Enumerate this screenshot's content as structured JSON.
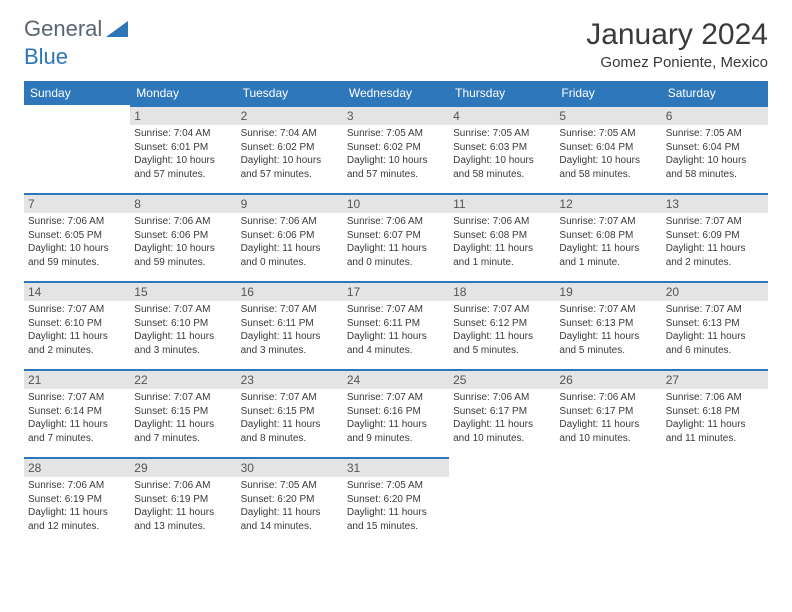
{
  "logo": {
    "part1": "General",
    "part2": "Blue"
  },
  "title": "January 2024",
  "subtitle": "Gomez Poniente, Mexico",
  "calendar": {
    "day_headers": [
      "Sunday",
      "Monday",
      "Tuesday",
      "Wednesday",
      "Thursday",
      "Friday",
      "Saturday"
    ],
    "header_bg": "#2e77bb",
    "header_fg": "#ffffff",
    "daynum_bg": "#e4e4e4",
    "daynum_border": "#2e77bb",
    "cell_text_color": "#3a3a3a",
    "font_size_cell": 10,
    "weeks": [
      [
        null,
        {
          "n": "1",
          "sr": "7:04 AM",
          "ss": "6:01 PM",
          "dl": "10 hours and 57 minutes."
        },
        {
          "n": "2",
          "sr": "7:04 AM",
          "ss": "6:02 PM",
          "dl": "10 hours and 57 minutes."
        },
        {
          "n": "3",
          "sr": "7:05 AM",
          "ss": "6:02 PM",
          "dl": "10 hours and 57 minutes."
        },
        {
          "n": "4",
          "sr": "7:05 AM",
          "ss": "6:03 PM",
          "dl": "10 hours and 58 minutes."
        },
        {
          "n": "5",
          "sr": "7:05 AM",
          "ss": "6:04 PM",
          "dl": "10 hours and 58 minutes."
        },
        {
          "n": "6",
          "sr": "7:05 AM",
          "ss": "6:04 PM",
          "dl": "10 hours and 58 minutes."
        }
      ],
      [
        {
          "n": "7",
          "sr": "7:06 AM",
          "ss": "6:05 PM",
          "dl": "10 hours and 59 minutes."
        },
        {
          "n": "8",
          "sr": "7:06 AM",
          "ss": "6:06 PM",
          "dl": "10 hours and 59 minutes."
        },
        {
          "n": "9",
          "sr": "7:06 AM",
          "ss": "6:06 PM",
          "dl": "11 hours and 0 minutes."
        },
        {
          "n": "10",
          "sr": "7:06 AM",
          "ss": "6:07 PM",
          "dl": "11 hours and 0 minutes."
        },
        {
          "n": "11",
          "sr": "7:06 AM",
          "ss": "6:08 PM",
          "dl": "11 hours and 1 minute."
        },
        {
          "n": "12",
          "sr": "7:07 AM",
          "ss": "6:08 PM",
          "dl": "11 hours and 1 minute."
        },
        {
          "n": "13",
          "sr": "7:07 AM",
          "ss": "6:09 PM",
          "dl": "11 hours and 2 minutes."
        }
      ],
      [
        {
          "n": "14",
          "sr": "7:07 AM",
          "ss": "6:10 PM",
          "dl": "11 hours and 2 minutes."
        },
        {
          "n": "15",
          "sr": "7:07 AM",
          "ss": "6:10 PM",
          "dl": "11 hours and 3 minutes."
        },
        {
          "n": "16",
          "sr": "7:07 AM",
          "ss": "6:11 PM",
          "dl": "11 hours and 3 minutes."
        },
        {
          "n": "17",
          "sr": "7:07 AM",
          "ss": "6:11 PM",
          "dl": "11 hours and 4 minutes."
        },
        {
          "n": "18",
          "sr": "7:07 AM",
          "ss": "6:12 PM",
          "dl": "11 hours and 5 minutes."
        },
        {
          "n": "19",
          "sr": "7:07 AM",
          "ss": "6:13 PM",
          "dl": "11 hours and 5 minutes."
        },
        {
          "n": "20",
          "sr": "7:07 AM",
          "ss": "6:13 PM",
          "dl": "11 hours and 6 minutes."
        }
      ],
      [
        {
          "n": "21",
          "sr": "7:07 AM",
          "ss": "6:14 PM",
          "dl": "11 hours and 7 minutes."
        },
        {
          "n": "22",
          "sr": "7:07 AM",
          "ss": "6:15 PM",
          "dl": "11 hours and 7 minutes."
        },
        {
          "n": "23",
          "sr": "7:07 AM",
          "ss": "6:15 PM",
          "dl": "11 hours and 8 minutes."
        },
        {
          "n": "24",
          "sr": "7:07 AM",
          "ss": "6:16 PM",
          "dl": "11 hours and 9 minutes."
        },
        {
          "n": "25",
          "sr": "7:06 AM",
          "ss": "6:17 PM",
          "dl": "11 hours and 10 minutes."
        },
        {
          "n": "26",
          "sr": "7:06 AM",
          "ss": "6:17 PM",
          "dl": "11 hours and 10 minutes."
        },
        {
          "n": "27",
          "sr": "7:06 AM",
          "ss": "6:18 PM",
          "dl": "11 hours and 11 minutes."
        }
      ],
      [
        {
          "n": "28",
          "sr": "7:06 AM",
          "ss": "6:19 PM",
          "dl": "11 hours and 12 minutes."
        },
        {
          "n": "29",
          "sr": "7:06 AM",
          "ss": "6:19 PM",
          "dl": "11 hours and 13 minutes."
        },
        {
          "n": "30",
          "sr": "7:05 AM",
          "ss": "6:20 PM",
          "dl": "11 hours and 14 minutes."
        },
        {
          "n": "31",
          "sr": "7:05 AM",
          "ss": "6:20 PM",
          "dl": "11 hours and 15 minutes."
        },
        null,
        null,
        null
      ]
    ],
    "labels": {
      "sunrise": "Sunrise:",
      "sunset": "Sunset:",
      "daylight": "Daylight:"
    }
  }
}
